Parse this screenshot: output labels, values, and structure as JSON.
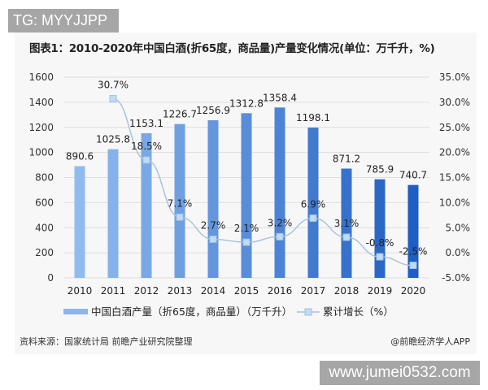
{
  "watermark_top": "TG: MYYJJPP",
  "watermark_bottom": "www.jumei0532.com",
  "source": "资料来源：国家统计局 前瞻产业研究院整理",
  "credit": "@前瞻经济学人APP",
  "chart_data": {
    "type": "bar+line",
    "title": "图表1：2010-2020年中国白酒(折65度，商品量)产量变化情况(单位：万千升，%)",
    "categories": [
      "2010",
      "2011",
      "2012",
      "2013",
      "2014",
      "2015",
      "2016",
      "2017",
      "2018",
      "2019",
      "2020"
    ],
    "series": [
      {
        "name": "中国白酒产量（折65度，商品量）（万千升）",
        "type": "bar",
        "axis": "left",
        "values": [
          890.6,
          1025.8,
          1153.1,
          1226.7,
          1256.9,
          1312.8,
          1358.4,
          1198.1,
          871.2,
          785.9,
          740.7
        ],
        "labels": [
          "890.6",
          "1025.8",
          "1153.1",
          "1226.7",
          "1256.9",
          "1312.8",
          "1358.4",
          "1198.1",
          "871.2",
          "785.9",
          "740.7"
        ],
        "color_start": "#90bbee",
        "color_end": "#1f5ec2"
      },
      {
        "name": "累计增长（%）",
        "type": "line",
        "axis": "right",
        "values": [
          null,
          30.7,
          18.5,
          7.1,
          2.7,
          2.1,
          3.2,
          6.9,
          3.1,
          -0.8,
          -2.5
        ],
        "labels": [
          "",
          "30.7%",
          "18.5%",
          "7.1%",
          "2.7%",
          "2.1%",
          "3.2%",
          "6.9%",
          "3.1%",
          "-0.8%",
          "-2.5%"
        ],
        "color": "#a9c4dc",
        "marker_color": "#bfdcf5"
      }
    ],
    "y_left": {
      "range": [
        0,
        1600
      ],
      "ticks": [
        "0",
        "200",
        "400",
        "600",
        "800",
        "1000",
        "1200",
        "1400",
        "1600"
      ]
    },
    "y_right": {
      "range": [
        -5,
        35
      ],
      "ticks": [
        "-5.0%",
        "0.0%",
        "5.0%",
        "10.0%",
        "15.0%",
        "20.0%",
        "25.0%",
        "30.0%",
        "35.0%"
      ]
    },
    "grid": true,
    "legend_position": "bottom"
  }
}
